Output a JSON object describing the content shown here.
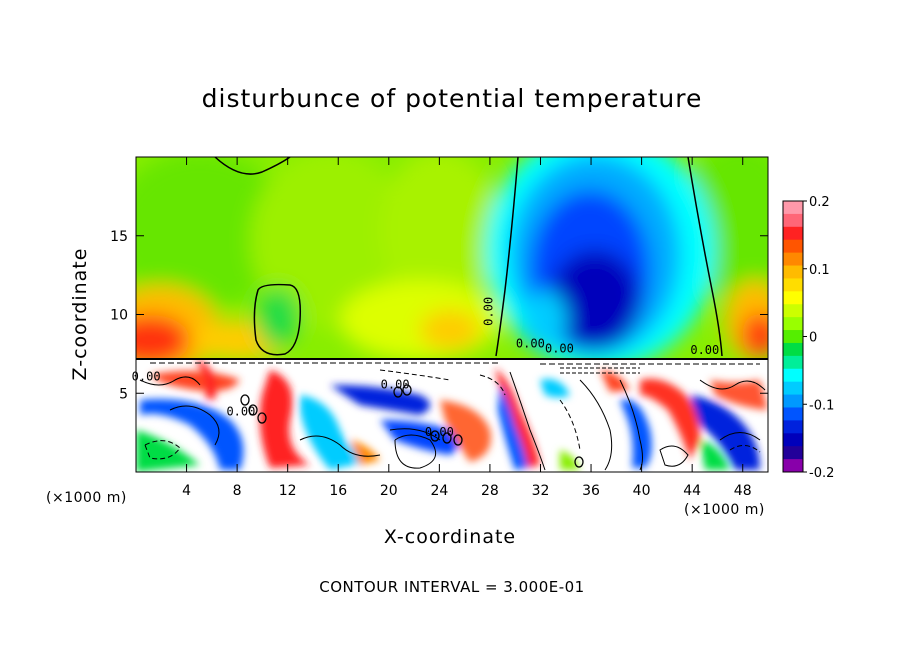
{
  "chart_data": {
    "type": "heatmap",
    "title": "disturbunce of potential temperature",
    "xlabel": "X-coordinate",
    "ylabel": "Z-coordinate",
    "x_unit": "(×1000 m)",
    "z_unit": "(×1000 m)",
    "footer": "CONTOUR INTERVAL = 3.000E-01",
    "xlim": [
      0,
      50
    ],
    "ylim": [
      0,
      20
    ],
    "x_ticks": [
      4,
      8,
      12,
      16,
      20,
      24,
      28,
      32,
      36,
      40,
      44,
      48
    ],
    "x_tick_labels": [
      "4",
      "8",
      "12",
      "16",
      "20",
      "24",
      "28",
      "32",
      "36",
      "40",
      "44",
      "48"
    ],
    "y_ticks": [
      5,
      10,
      15
    ],
    "y_tick_labels": [
      "5",
      "10",
      "15"
    ],
    "colorbar": {
      "range": [
        -0.2,
        0.2
      ],
      "tick_labels": [
        "0.2",
        "0.1",
        "0",
        "-0.1",
        "-0.2"
      ],
      "tick_values": [
        0.2,
        0.1,
        0,
        -0.1,
        -0.2
      ],
      "colors": [
        "#ff99aa",
        "#ff6677",
        "#ff2222",
        "#ff5500",
        "#ff8800",
        "#ffbb00",
        "#ffdd00",
        "#ffff00",
        "#ccff00",
        "#99ff00",
        "#55ee00",
        "#00dd44",
        "#00ee99",
        "#00ffff",
        "#00ccff",
        "#0099ff",
        "#0055ff",
        "#0022dd",
        "#0000bb",
        "#220099",
        "#8800aa"
      ]
    },
    "contour_labels": [
      "0.00",
      "0.00",
      "0.00",
      "0.00",
      "0.00",
      "0.00",
      "0.00",
      "0.00"
    ],
    "regions": {
      "upper": {
        "z_range": [
          7.2,
          20
        ],
        "description_values": "mostly near 0 (green) with positive anomaly (red/orange, ~0.15) near x=0-8 at z=8-11, negative anomaly (blue, ~-0.15) centered x=33-41, z=8-18"
      },
      "lower": {
        "z_range": [
          0,
          7.2
        ],
        "description_values": "mixed turbulent field, saturated ±0.2 values with white areas"
      }
    }
  }
}
